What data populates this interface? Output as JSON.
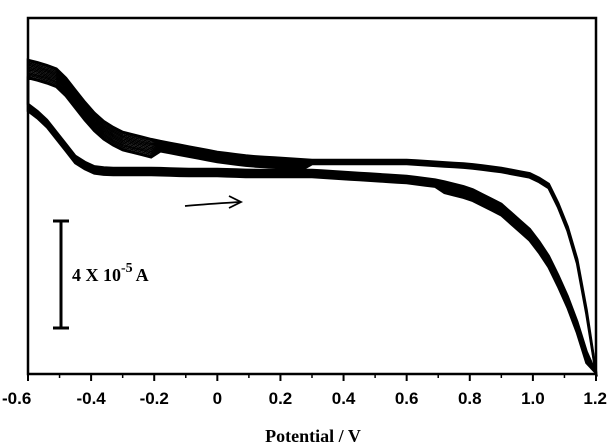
{
  "chart_data": {
    "type": "line",
    "title": "",
    "xlabel": "Potential / V",
    "ylabel": "",
    "xlim": [
      -0.6,
      1.2
    ],
    "x_ticks": [
      "-0.6",
      "-0.4",
      "-0.2",
      "0",
      "0.2",
      "0.4",
      "0.6",
      "0.8",
      "1.0",
      "1.2"
    ],
    "y_tick_labels": false,
    "grid": false,
    "legend": "none",
    "line_color": "#000000",
    "cycles": 14,
    "scale_bar": {
      "label_prefix": "4 X 10",
      "label_exponent": "-5",
      "label_unit": "A",
      "value_A": 4e-05
    },
    "scan_direction": "positive",
    "series": [
      {
        "segment": "forward_scan_lower_branch",
        "x": [
          -0.6,
          -0.55,
          -0.5,
          -0.45,
          -0.4,
          -0.35,
          -0.3,
          -0.25,
          -0.2,
          -0.1,
          0,
          0.1,
          0.2,
          0.3,
          0.4,
          0.5,
          0.6,
          0.7,
          0.8,
          0.9,
          1.0,
          1.05,
          1.1,
          1.15,
          1.2
        ],
        "y": [
          0.78,
          0.72,
          0.62,
          0.52,
          0.47,
          0.46,
          0.46,
          0.46,
          0.46,
          0.455,
          0.455,
          0.45,
          0.45,
          0.45,
          0.44,
          0.43,
          0.42,
          0.4,
          0.36,
          0.28,
          0.14,
          0.02,
          -0.14,
          -0.35,
          -0.62
        ]
      },
      {
        "segment": "reverse_scan_upper_branch",
        "x": [
          1.2,
          1.18,
          1.15,
          1.1,
          1.05,
          1.0,
          0.9,
          0.8,
          0.7,
          0.6,
          0.5,
          0.4,
          0.3,
          0.2,
          0.1,
          0,
          -0.1,
          -0.2,
          -0.3,
          -0.35,
          -0.4,
          -0.45,
          -0.5,
          -0.55,
          -0.6
        ],
        "y": [
          -0.62,
          -0.35,
          -0.05,
          0.22,
          0.38,
          0.43,
          0.46,
          0.48,
          0.49,
          0.5,
          0.5,
          0.5,
          0.5,
          0.51,
          0.52,
          0.54,
          0.57,
          0.6,
          0.64,
          0.68,
          0.75,
          0.85,
          0.95,
          0.98,
          1.0
        ]
      }
    ]
  }
}
